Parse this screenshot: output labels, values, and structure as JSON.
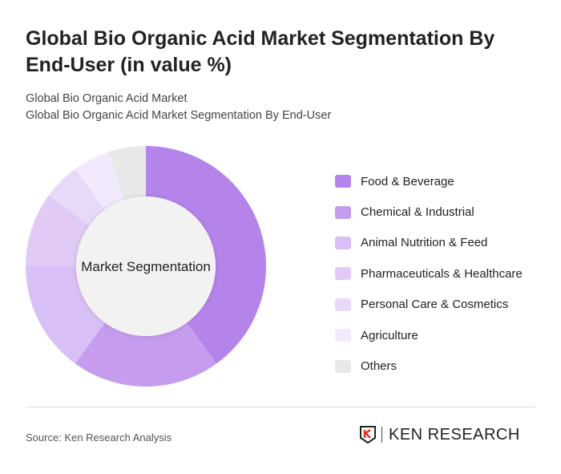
{
  "title": "Global Bio Organic Acid Market Segmentation By End-User (in value %)",
  "subtitle_1": "Global Bio Organic Acid Market",
  "subtitle_2": "Global Bio Organic Acid Market Segmentation By End-User",
  "source": "Source: Ken Research Analysis",
  "logo_text": "KEN RESEARCH",
  "chart_data": {
    "type": "pie",
    "donut": true,
    "center_label": "Market Segmentation",
    "legend_position": "right",
    "categories": [
      "Food & Beverage",
      "Chemical & Industrial",
      "Animal Nutrition & Feed",
      "Pharmaceuticals & Healthcare",
      "Personal Care & Cosmetics",
      "Agriculture",
      "Others"
    ],
    "values": [
      40,
      20,
      15,
      10,
      5,
      5,
      5
    ],
    "colors": [
      "#b584ea",
      "#c59cee",
      "#d8bff5",
      "#e1caf6",
      "#e9d9f9",
      "#f2eafc",
      "#e8e8e8"
    ]
  }
}
